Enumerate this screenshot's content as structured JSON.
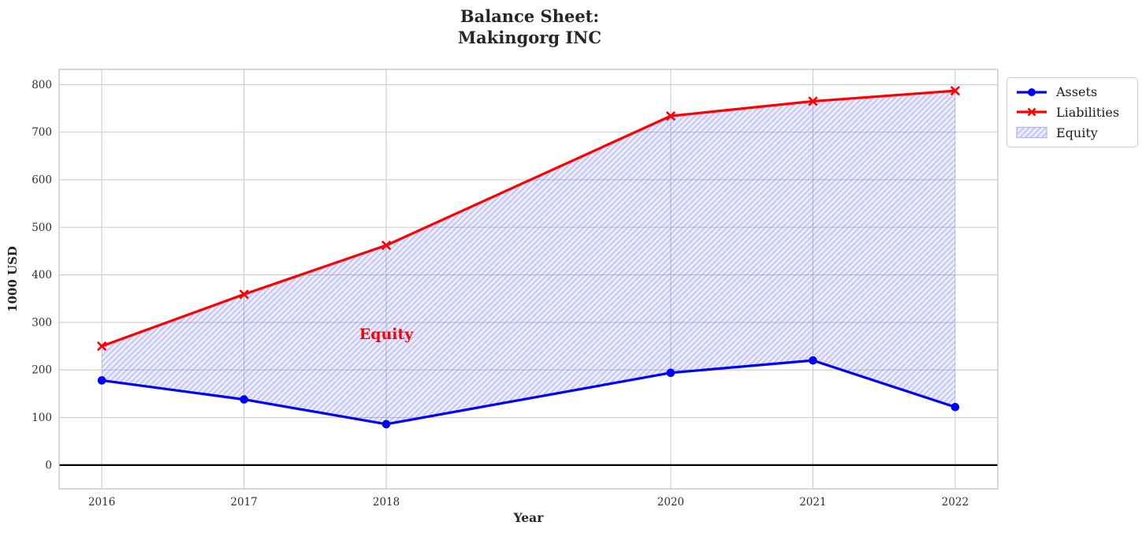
{
  "title": {
    "line1": "Balance Sheet:",
    "line2": "Makingorg INC"
  },
  "chart_data": {
    "type": "line",
    "title": "Balance Sheet: Makingorg INC",
    "xlabel": "Year",
    "ylabel": "1000 USD",
    "x": [
      2016,
      2017,
      2018,
      2020,
      2021,
      2022
    ],
    "series": [
      {
        "name": "Assets",
        "color": "#0000ff",
        "marker": "circle",
        "values": [
          178,
          138,
          86,
          194,
          220,
          122
        ]
      },
      {
        "name": "Liabilities",
        "color": "#ff0000",
        "marker": "x",
        "values": [
          250,
          359,
          462,
          734,
          765,
          787
        ]
      }
    ],
    "fill_between": {
      "label": "Equity",
      "between": [
        "Assets",
        "Liabilities"
      ],
      "hatch": "//",
      "face_rgba": "rgba(60,60,235,0.10)",
      "hatch_rgba": "rgba(85,85,225,0.32)",
      "edge_hex": "#b9b9ef"
    },
    "annotation": {
      "text": "Equity",
      "x": 2018,
      "y": 275,
      "color": "#ff0000"
    },
    "xticks": [
      2016,
      2017,
      2018,
      2020,
      2021,
      2022
    ],
    "yticks": [
      0,
      100,
      200,
      300,
      400,
      500,
      600,
      700,
      800
    ],
    "xlim": [
      2015.7,
      2022.3
    ],
    "ylim": [
      -50,
      832
    ],
    "grid": true,
    "grid_color": "#cccccc",
    "spine_color": "#c3c3c3",
    "zero_line": {
      "y": 0,
      "color": "#000000"
    },
    "legend_position": "upper right outside"
  }
}
